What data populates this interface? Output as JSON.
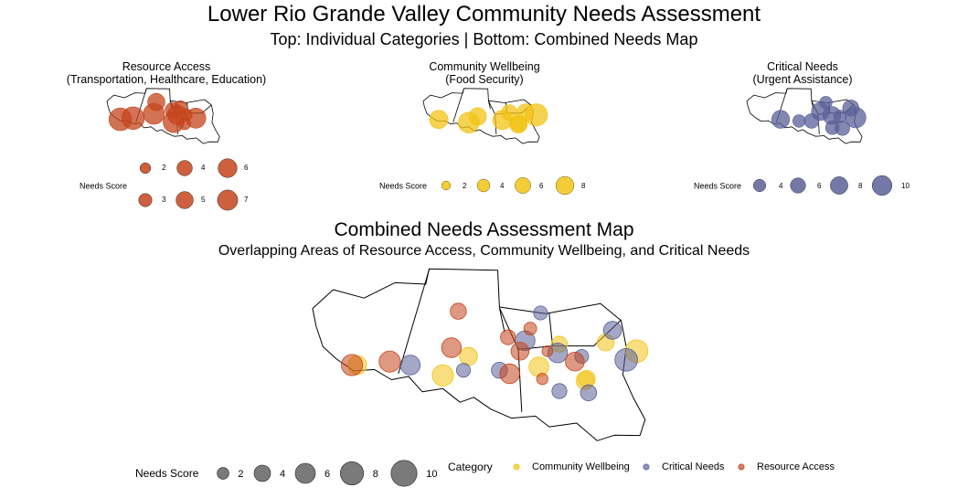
{
  "title": "Lower Rio Grande Valley Community Needs Assessment",
  "subtitle": "Top: Individual Categories | Bottom: Combined Needs Map",
  "colors": {
    "resource": "#C4441C",
    "wellbeing": "#F2C314",
    "critical": "#5A6098",
    "neutral": "#595959"
  },
  "panels": [
    {
      "title_line1": "Resource Access",
      "title_line2": "(Transportation, Healthcare, Education)",
      "legend_label": "Needs Score",
      "legend_values": [
        2,
        3,
        4,
        5,
        6,
        7
      ],
      "legend_rows": 2
    },
    {
      "title_line1": "Community Wellbeing",
      "title_line2": "(Food Security)",
      "legend_label": "Needs Score",
      "legend_values": [
        2,
        4,
        6,
        8
      ],
      "legend_rows": 1
    },
    {
      "title_line1": "Critical Needs",
      "title_line2": "(Urgent Assistance)",
      "legend_label": "Needs Score",
      "legend_values": [
        4,
        6,
        8,
        10
      ],
      "legend_rows": 1
    }
  ],
  "combined": {
    "title": "Combined Needs Assessment Map",
    "subtitle": "Overlapping Areas of Resource Access, Community Wellbeing, and Critical Needs",
    "size_legend_label": "Needs Score",
    "size_legend_values": [
      2,
      4,
      6,
      8,
      10
    ],
    "category_legend_label": "Category",
    "categories": [
      "Community Wellbeing",
      "Critical Needs",
      "Resource Access"
    ]
  },
  "chart_data": {
    "type": "scatter",
    "size_variable": "Needs Score",
    "color_variable": "Category",
    "series": [
      {
        "name": "Resource Access",
        "points": [
          {
            "x": 0.115,
            "y": 0.55,
            "score": 7
          },
          {
            "x": 0.225,
            "y": 0.53,
            "score": 7
          },
          {
            "x": 0.425,
            "y": 0.24,
            "score": 4
          },
          {
            "x": 0.405,
            "y": 0.45,
            "score": 6
          },
          {
            "x": 0.57,
            "y": 0.39,
            "score": 3.5
          },
          {
            "x": 0.575,
            "y": 0.6,
            "score": 6
          },
          {
            "x": 0.605,
            "y": 0.47,
            "score": 5
          },
          {
            "x": 0.635,
            "y": 0.34,
            "score": 2.5
          },
          {
            "x": 0.67,
            "y": 0.63,
            "score": 2
          },
          {
            "x": 0.765,
            "y": 0.53,
            "score": 5.5
          },
          {
            "x": 0.685,
            "y": 0.47,
            "score": 1.8
          }
        ]
      },
      {
        "name": "Community Wellbeing",
        "points": [
          {
            "x": 0.13,
            "y": 0.55,
            "score": 5.5
          },
          {
            "x": 0.38,
            "y": 0.61,
            "score": 7
          },
          {
            "x": 0.455,
            "y": 0.5,
            "score": 5
          },
          {
            "x": 0.66,
            "y": 0.56,
            "score": 6
          },
          {
            "x": 0.72,
            "y": 0.43,
            "score": 4
          },
          {
            "x": 0.795,
            "y": 0.64,
            "score": 5
          },
          {
            "x": 0.855,
            "y": 0.42,
            "score": 4.5
          },
          {
            "x": 0.8,
            "y": 0.63,
            "score": 4.5
          },
          {
            "x": 0.945,
            "y": 0.47,
            "score": 8
          }
        ]
      },
      {
        "name": "Critical Needs",
        "points": [
          {
            "x": 0.285,
            "y": 0.55,
            "score": 6
          },
          {
            "x": 0.44,
            "y": 0.58,
            "score": 3
          },
          {
            "x": 0.545,
            "y": 0.58,
            "score": 4
          },
          {
            "x": 0.62,
            "y": 0.41,
            "score": 6
          },
          {
            "x": 0.665,
            "y": 0.25,
            "score": 3
          },
          {
            "x": 0.715,
            "y": 0.48,
            "score": 6
          },
          {
            "x": 0.785,
            "y": 0.5,
            "score": 3
          },
          {
            "x": 0.72,
            "y": 0.7,
            "score": 3.5
          },
          {
            "x": 0.805,
            "y": 0.71,
            "score": 4
          },
          {
            "x": 0.875,
            "y": 0.35,
            "score": 5
          },
          {
            "x": 0.915,
            "y": 0.52,
            "score": 8
          }
        ]
      }
    ]
  }
}
